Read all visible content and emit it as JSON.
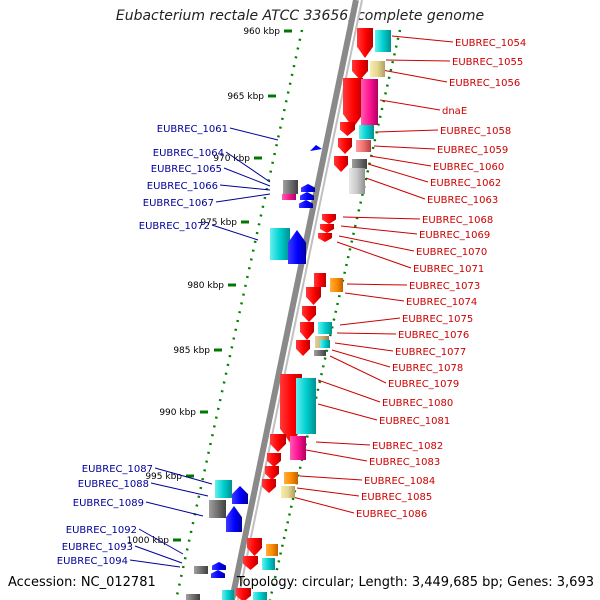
{
  "title": "Eubacterium rectale ATCC 33656, complete genome",
  "accession": "Accession: NC_012781",
  "summary": "Topology: circular; Length: 3,449,685 bp; Genes: 3,693",
  "ticks": [
    "960 kbp",
    "965 kbp",
    "970 kbp",
    "975 kbp",
    "980 kbp",
    "985 kbp",
    "990 kbp",
    "995 kbp",
    "1000 kbp"
  ],
  "right_labels": [
    "EUBREC_1054",
    "EUBREC_1055",
    "EUBREC_1056",
    "dnaE",
    "EUBREC_1058",
    "EUBREC_1059",
    "EUBREC_1060",
    "EUBREC_1062",
    "EUBREC_1063",
    "EUBREC_1068",
    "EUBREC_1069",
    "EUBREC_1070",
    "EUBREC_1071",
    "EUBREC_1073",
    "EUBREC_1074",
    "EUBREC_1075",
    "EUBREC_1076",
    "EUBREC_1077",
    "EUBREC_1078",
    "EUBREC_1079",
    "EUBREC_1080",
    "EUBREC_1081",
    "EUBREC_1082",
    "EUBREC_1083",
    "EUBREC_1084",
    "EUBREC_1085",
    "EUBREC_1086"
  ],
  "left_labels": [
    "EUBREC_1061",
    "EUBREC_1064",
    "EUBREC_1065",
    "EUBREC_1066",
    "EUBREC_1067",
    "EUBREC_1072",
    "EUBREC_1087",
    "EUBREC_1088",
    "EUBREC_1089",
    "EUBREC_1092",
    "EUBREC_1093",
    "EUBREC_1094"
  ],
  "colors": {
    "forward_gene": "#ff0000",
    "reverse_gene": "#0000ff",
    "right_label": "#cc0000",
    "left_label": "#000099",
    "backbone": "#808080",
    "tick": "#007700"
  }
}
